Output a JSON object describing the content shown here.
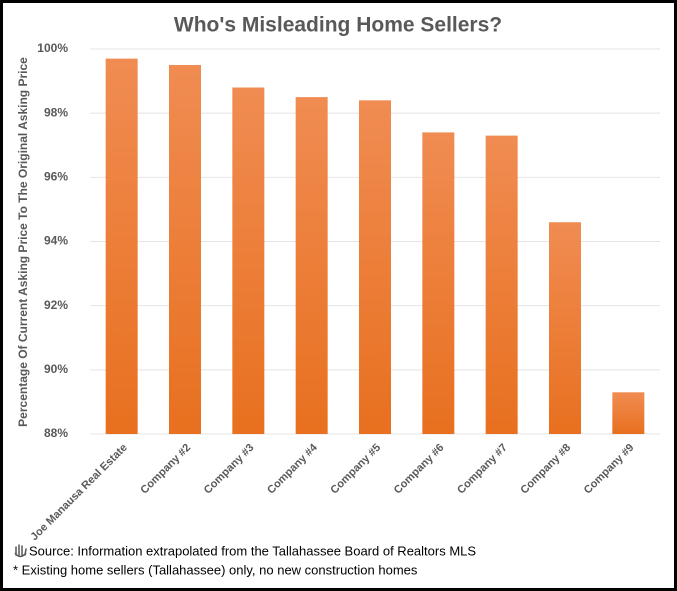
{
  "chart_data": {
    "type": "bar",
    "title": "Who's Misleading Home Sellers?",
    "y_label": "Percentage Of Current Asking Price To The Original Asking Price",
    "categories": [
      "Joe Manausa Real Estate",
      "Company #2",
      "Company #3",
      "Company #4",
      "Company #5",
      "Company #6",
      "Company #7",
      "Company #8",
      "Company #9"
    ],
    "values": [
      99.7,
      99.5,
      98.8,
      98.5,
      98.4,
      97.4,
      97.3,
      94.6,
      89.3
    ],
    "color": "#ed7d31",
    "ylim": [
      88,
      100
    ],
    "yticks": [
      {
        "value": 88,
        "label": "88%"
      },
      {
        "value": 90,
        "label": "90%"
      },
      {
        "value": 92,
        "label": "92%"
      },
      {
        "value": 94,
        "label": "94%"
      },
      {
        "value": 96,
        "label": "96%"
      },
      {
        "value": 98,
        "label": "98%"
      },
      {
        "value": 100,
        "label": "100%"
      }
    ],
    "grid": true,
    "source": "Source: Information extrapolated from the Tallahassee Board of Realtors MLS",
    "footnote": "* Existing home sellers (Tallahassee) only, no new construction homes"
  }
}
